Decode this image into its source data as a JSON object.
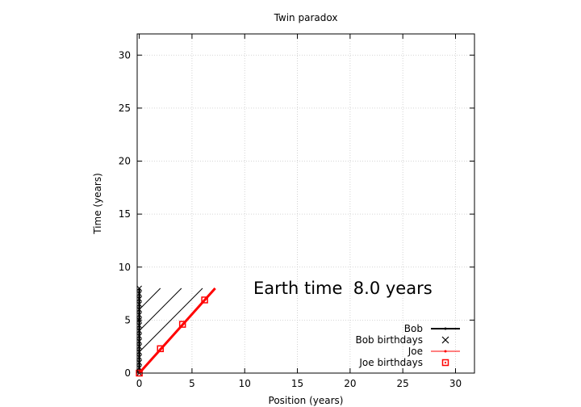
{
  "chart_data": {
    "type": "line",
    "title": "Twin paradox",
    "xlabel": "Position (years)",
    "ylabel": "Time (years)",
    "xlim": [
      -0.2,
      31.8
    ],
    "ylim": [
      0,
      32
    ],
    "xticks": [
      0,
      5,
      10,
      15,
      20,
      25,
      30
    ],
    "yticks": [
      0,
      5,
      10,
      15,
      20,
      25,
      30
    ],
    "grid": true,
    "legend_position": "bottom-right",
    "annotation": "Earth time  8.0 years",
    "series": [
      {
        "name": "Bob",
        "color": "#000000",
        "x": [
          0,
          0
        ],
        "y": [
          0,
          8.0
        ]
      },
      {
        "name": "Bob birthdays",
        "color": "#000000",
        "marker": "x",
        "x": [
          0,
          0,
          0,
          0,
          0,
          0,
          0,
          0,
          0,
          0,
          0,
          0,
          0,
          0,
          0,
          0,
          0
        ],
        "y": [
          0,
          0.5,
          1,
          1.5,
          2,
          2.5,
          3,
          3.5,
          4,
          4.5,
          5,
          5.5,
          6,
          6.5,
          7,
          7.5,
          8
        ]
      },
      {
        "name": "Joe",
        "color": "#ff0000",
        "x": [
          0,
          7.2
        ],
        "y": [
          0,
          8.0
        ]
      },
      {
        "name": "Joe birthdays",
        "color": "#ff0000",
        "marker": "square",
        "x": [
          0,
          2.0,
          4.1,
          6.2
        ],
        "y": [
          0,
          2.3,
          4.6,
          6.9
        ]
      }
    ],
    "diagonal_lines": [
      {
        "x": [
          0,
          2.0
        ],
        "y": [
          6,
          8
        ]
      },
      {
        "x": [
          0,
          4.0
        ],
        "y": [
          4,
          8
        ]
      },
      {
        "x": [
          0,
          6.0
        ],
        "y": [
          2,
          8
        ]
      }
    ]
  }
}
